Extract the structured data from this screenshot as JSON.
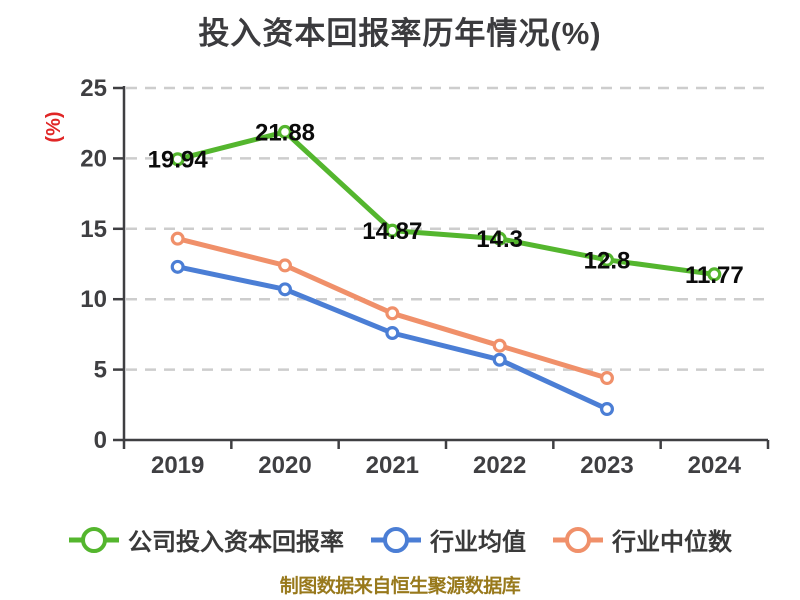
{
  "title": "投入资本回报率历年情况(%)",
  "y_axis_title": "(%)",
  "caption": "制图数据来自恒生聚源数据库",
  "colors": {
    "title": "#3b3b3e",
    "axis": "#3f3f42",
    "grid": "#cdcdcd",
    "y_axis_title": "#e02626",
    "data_label": "#0b0b0b",
    "caption": "#98791c",
    "background": "#ffffff"
  },
  "chart_data": {
    "type": "line",
    "title": "投入资本回报率历年情况(%)",
    "xlabel": "",
    "ylabel": "(%)",
    "categories": [
      "2019",
      "2020",
      "2021",
      "2022",
      "2023",
      "2024"
    ],
    "series": [
      {
        "name": "公司投入资本回报率",
        "color": "#54b62e",
        "values": [
          19.94,
          21.88,
          14.87,
          14.3,
          12.8,
          11.77
        ],
        "labels": [
          "19.94",
          "21.88",
          "14.87",
          "14.3",
          "12.8",
          "11.77"
        ]
      },
      {
        "name": "行业均值",
        "color": "#4b7ed5",
        "values": [
          12.3,
          10.7,
          7.6,
          5.7,
          2.2,
          null
        ]
      },
      {
        "name": "行业中位数",
        "color": "#f0906a",
        "values": [
          14.3,
          12.4,
          9.0,
          6.7,
          4.4,
          null
        ]
      }
    ],
    "ylim": [
      0,
      25
    ],
    "y_ticks": [
      0,
      5,
      10,
      15,
      20,
      25
    ],
    "grid": "dashed horizontal gridlines",
    "legend_position": "bottom",
    "marker_style": "white-filled circles with colored ring"
  }
}
